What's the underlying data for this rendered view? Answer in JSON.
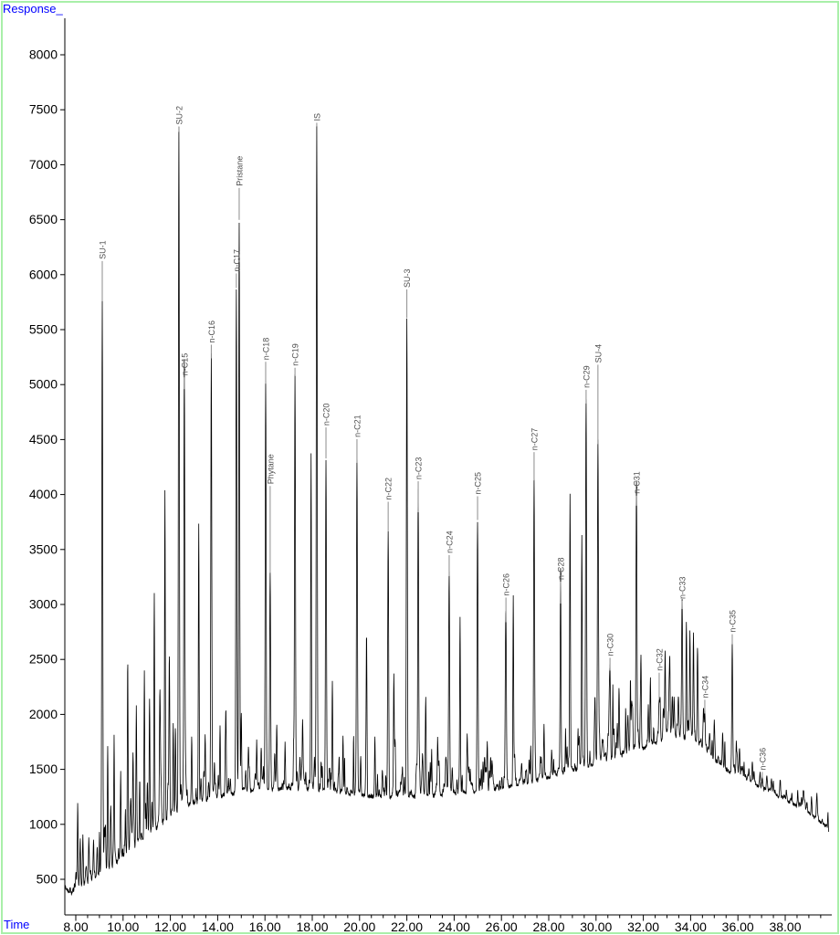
{
  "window": {
    "y_axis_title": "Response_",
    "x_axis_title": "Time"
  },
  "colors": {
    "axis_title": "#0000ff",
    "axis_line": "#000000",
    "tick_label": "#000000",
    "trace": "#000000",
    "peak_label": "#4d4d4d",
    "leader_line": "#8c8c8c",
    "frame_border": "#a9efa9",
    "background": "#ffffff"
  },
  "chart_data": {
    "type": "line",
    "title": "",
    "xlabel": "Time",
    "ylabel": "Response",
    "x_axis": {
      "range": [
        7.54,
        39.9
      ],
      "major_tick_values": [
        8,
        10,
        12,
        14,
        16,
        18,
        20,
        22,
        24,
        26,
        28,
        30,
        32,
        34,
        36,
        38
      ],
      "major_tick_labels": [
        "8.00",
        "10.00",
        "12.00",
        "14.00",
        "16.00",
        "18.00",
        "20.00",
        "22.00",
        "24.00",
        "26.00",
        "28.00",
        "30.00",
        "32.00",
        "34.00",
        "36.00",
        "38.00"
      ],
      "minor_step": 0.5,
      "grid": false
    },
    "y_axis": {
      "range": [
        170,
        8340
      ],
      "tick_values": [
        500,
        1000,
        1500,
        2000,
        2500,
        3000,
        3500,
        4000,
        4500,
        5000,
        5500,
        6000,
        6500,
        7000,
        7500,
        8000
      ],
      "grid": false
    },
    "legend": null,
    "labeled_peaks": [
      {
        "name": "SU-1",
        "time": 9.12,
        "response": 5750,
        "lead": 45
      },
      {
        "name": "SU-2",
        "time": 12.36,
        "response": 7290,
        "lead": 7
      },
      {
        "name": "n-C15",
        "time": 12.59,
        "response": 4950,
        "lead": 14
      },
      {
        "name": "n-C16",
        "time": 13.73,
        "response": 5230,
        "lead": 16
      },
      {
        "name": "n-C17",
        "time": 14.79,
        "response": 5870,
        "lead": 17
      },
      {
        "name": "Pristane",
        "time": 14.91,
        "response": 6490,
        "lead": 36
      },
      {
        "name": "n-C18",
        "time": 16.03,
        "response": 5000,
        "lead": 25
      },
      {
        "name": "Phytane",
        "time": 16.22,
        "response": 3280,
        "lead": 96
      },
      {
        "name": "n-C19",
        "time": 17.27,
        "response": 5070,
        "lead": 10
      },
      {
        "name": "IS",
        "time": 18.19,
        "response": 7340,
        "lead": 5
      },
      {
        "name": "n-C20",
        "time": 18.58,
        "response": 4320,
        "lead": 35
      },
      {
        "name": "n-C21",
        "time": 19.89,
        "response": 4280,
        "lead": 27
      },
      {
        "name": "n-C22",
        "time": 21.21,
        "response": 3660,
        "lead": 33
      },
      {
        "name": "SU-3",
        "time": 22.0,
        "response": 5600,
        "lead": 32
      },
      {
        "name": "n-C23",
        "time": 22.48,
        "response": 3830,
        "lead": 35
      },
      {
        "name": "n-C24",
        "time": 23.79,
        "response": 3250,
        "lead": 24
      },
      {
        "name": "n-C25",
        "time": 24.99,
        "response": 3760,
        "lead": 27
      },
      {
        "name": "n-C26",
        "time": 26.19,
        "response": 2830,
        "lead": 28
      },
      {
        "name": "n-C27",
        "time": 27.38,
        "response": 4120,
        "lead": 32
      },
      {
        "name": "n-C28",
        "time": 28.5,
        "response": 3000,
        "lead": 25
      },
      {
        "name": "n-C29",
        "time": 29.58,
        "response": 4820,
        "lead": 16
      },
      {
        "name": "SU-4",
        "time": 30.08,
        "response": 4450,
        "lead": 88
      },
      {
        "name": "n-C30",
        "time": 30.59,
        "response": 2390,
        "lead": 15
      },
      {
        "name": "n-C31",
        "time": 31.71,
        "response": 3890,
        "lead": 12
      },
      {
        "name": "n-C32",
        "time": 32.67,
        "response": 2130,
        "lead": 30
      },
      {
        "name": "n-C33",
        "time": 33.64,
        "response": 2950,
        "lead": 10
      },
      {
        "name": "n-C34",
        "time": 34.6,
        "response": 2000,
        "lead": 16
      },
      {
        "name": "n-C35",
        "time": 35.76,
        "response": 2630,
        "lead": 12
      },
      {
        "name": "n-C36",
        "time": 37.03,
        "response": 1410,
        "lead": 8
      }
    ],
    "unlabeled_peaks": [
      [
        8.08,
        1100
      ],
      [
        8.3,
        700
      ],
      [
        8.55,
        760
      ],
      [
        8.75,
        800
      ],
      [
        9.35,
        1690
      ],
      [
        9.62,
        1730
      ],
      [
        9.9,
        1300
      ],
      [
        10.2,
        2020
      ],
      [
        10.42,
        1450
      ],
      [
        10.56,
        1800
      ],
      [
        10.9,
        2400
      ],
      [
        11.12,
        1850
      ],
      [
        11.32,
        3050
      ],
      [
        11.55,
        1900
      ],
      [
        11.77,
        4050
      ],
      [
        11.95,
        2100
      ],
      [
        12.12,
        1900
      ],
      [
        12.9,
        1750
      ],
      [
        13.2,
        3720
      ],
      [
        13.47,
        1800
      ],
      [
        14.1,
        1850
      ],
      [
        14.35,
        1900
      ],
      [
        15.0,
        1750
      ],
      [
        15.3,
        1700
      ],
      [
        15.65,
        1750
      ],
      [
        16.5,
        1680
      ],
      [
        16.85,
        1720
      ],
      [
        17.6,
        1800
      ],
      [
        17.95,
        4180
      ],
      [
        18.85,
        2250
      ],
      [
        19.3,
        1800
      ],
      [
        20.3,
        2410
      ],
      [
        20.65,
        1750
      ],
      [
        21.45,
        2300
      ],
      [
        22.8,
        2150
      ],
      [
        23.3,
        1750
      ],
      [
        24.25,
        2900
      ],
      [
        24.55,
        1800
      ],
      [
        25.4,
        1750
      ],
      [
        26.5,
        3080
      ],
      [
        27.8,
        1900
      ],
      [
        28.9,
        3820
      ],
      [
        29.4,
        3650
      ],
      [
        30.9,
        1900
      ],
      [
        31.5,
        2000
      ],
      [
        31.9,
        2560
      ],
      [
        32.3,
        2190
      ],
      [
        32.92,
        2390
      ],
      [
        33.3,
        2150
      ],
      [
        33.82,
        2850
      ],
      [
        33.97,
        2680
      ],
      [
        34.12,
        2560
      ],
      [
        34.3,
        2300
      ],
      [
        35.0,
        1940
      ],
      [
        35.35,
        1650
      ],
      [
        36.2,
        1520
      ],
      [
        36.6,
        1430
      ],
      [
        37.4,
        1300
      ],
      [
        38.3,
        1180
      ],
      [
        38.9,
        1100
      ]
    ],
    "baseline_points": [
      [
        7.54,
        430
      ],
      [
        7.75,
        380
      ],
      [
        7.95,
        360
      ],
      [
        8.2,
        400
      ],
      [
        8.5,
        460
      ],
      [
        9.0,
        540
      ],
      [
        9.5,
        620
      ],
      [
        10.0,
        700
      ],
      [
        10.5,
        790
      ],
      [
        11.0,
        890
      ],
      [
        11.5,
        990
      ],
      [
        12.0,
        1080
      ],
      [
        12.5,
        1150
      ],
      [
        13.0,
        1195
      ],
      [
        13.5,
        1225
      ],
      [
        14.0,
        1255
      ],
      [
        14.5,
        1275
      ],
      [
        15.0,
        1295
      ],
      [
        15.5,
        1305
      ],
      [
        16.0,
        1315
      ],
      [
        16.5,
        1320
      ],
      [
        17.0,
        1325
      ],
      [
        17.5,
        1325
      ],
      [
        18.0,
        1315
      ],
      [
        18.5,
        1305
      ],
      [
        19.0,
        1295
      ],
      [
        19.5,
        1280
      ],
      [
        20.0,
        1265
      ],
      [
        20.5,
        1255
      ],
      [
        21.0,
        1250
      ],
      [
        21.5,
        1248
      ],
      [
        22.0,
        1250
      ],
      [
        22.5,
        1252
      ],
      [
        23.0,
        1258
      ],
      [
        23.5,
        1268
      ],
      [
        24.0,
        1280
      ],
      [
        24.5,
        1290
      ],
      [
        25.0,
        1302
      ],
      [
        25.5,
        1315
      ],
      [
        26.0,
        1330
      ],
      [
        26.5,
        1350
      ],
      [
        27.0,
        1375
      ],
      [
        27.5,
        1400
      ],
      [
        28.0,
        1430
      ],
      [
        28.5,
        1460
      ],
      [
        29.0,
        1495
      ],
      [
        29.5,
        1525
      ],
      [
        30.0,
        1555
      ],
      [
        30.5,
        1590
      ],
      [
        31.0,
        1625
      ],
      [
        31.5,
        1660
      ],
      [
        32.0,
        1700
      ],
      [
        32.5,
        1740
      ],
      [
        33.0,
        1775
      ],
      [
        33.5,
        1800
      ],
      [
        34.0,
        1790
      ],
      [
        34.3,
        1740
      ],
      [
        34.6,
        1680
      ],
      [
        35.0,
        1590
      ],
      [
        35.5,
        1500
      ],
      [
        36.0,
        1440
      ],
      [
        36.5,
        1390
      ],
      [
        37.0,
        1330
      ],
      [
        37.5,
        1280
      ],
      [
        38.0,
        1225
      ],
      [
        38.5,
        1165
      ],
      [
        39.0,
        1105
      ],
      [
        39.4,
        1040
      ],
      [
        39.7,
        985
      ],
      [
        39.85,
        905
      ]
    ],
    "noise_regions": [
      {
        "t0": 7.54,
        "t1": 9.0,
        "amp": 250
      },
      {
        "t0": 9.0,
        "t1": 12.0,
        "amp": 430
      },
      {
        "t0": 12.0,
        "t1": 14.0,
        "amp": 330
      },
      {
        "t0": 14.0,
        "t1": 18.5,
        "amp": 260
      },
      {
        "t0": 18.5,
        "t1": 28.0,
        "amp": 230
      },
      {
        "t0": 28.0,
        "t1": 31.0,
        "amp": 270
      },
      {
        "t0": 31.0,
        "t1": 34.3,
        "amp": 310
      },
      {
        "t0": 34.3,
        "t1": 36.5,
        "amp": 200
      },
      {
        "t0": 36.5,
        "t1": 39.9,
        "amp": 130
      }
    ]
  }
}
